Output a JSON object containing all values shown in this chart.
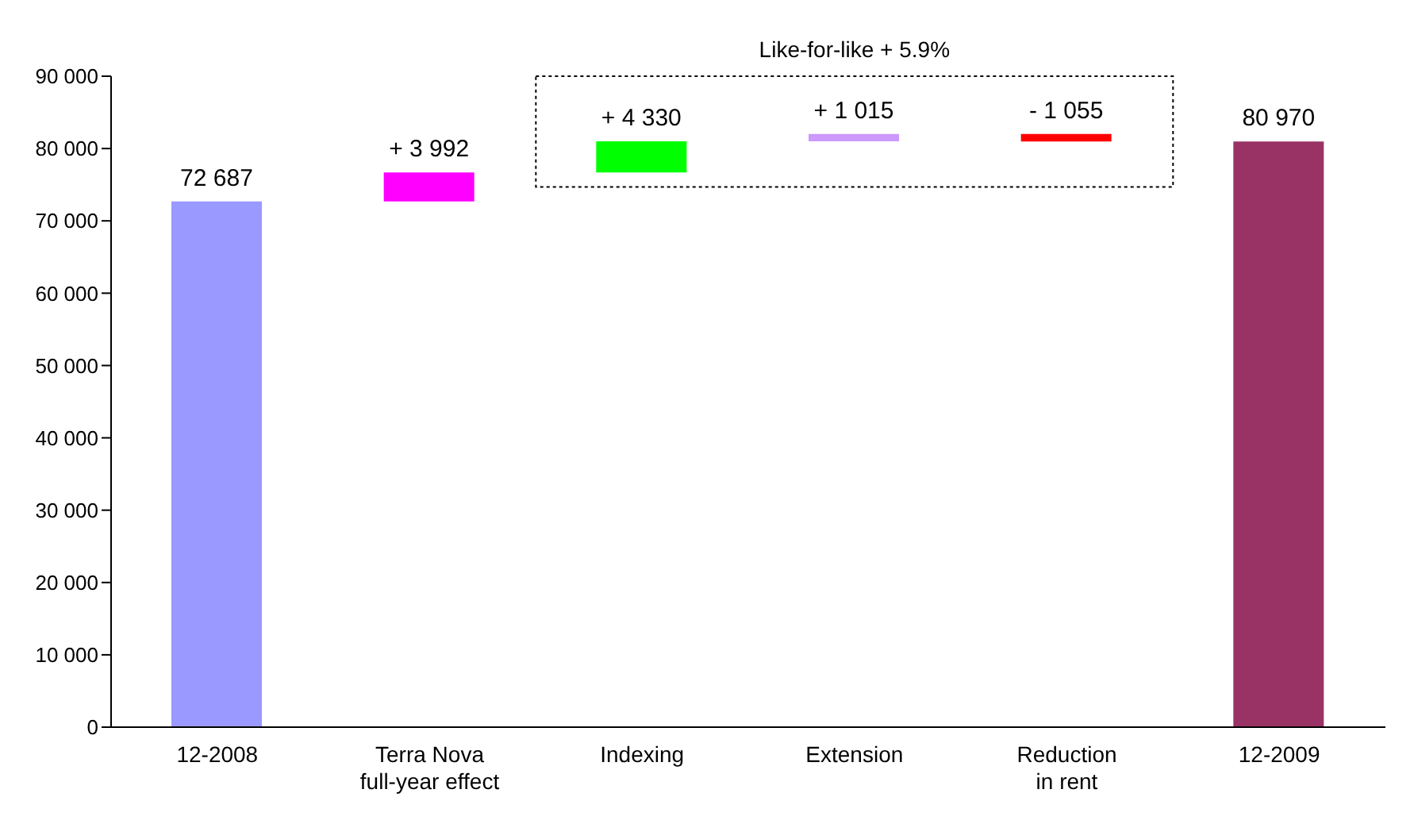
{
  "chart_data": {
    "type": "bar",
    "categories": [
      "12-2008",
      "Terra Nova full-year effect",
      "Indexing",
      "Extension",
      "Reduction in rent",
      "12-2009"
    ],
    "values": [
      72687,
      3992,
      4330,
      1015,
      -1055,
      80970
    ],
    "base": [
      0,
      72687,
      76679,
      81009,
      82024,
      0
    ],
    "colors": [
      "#9999ff",
      "#ff00ff",
      "#00ff00",
      "#cc99ff",
      "#ff0000",
      "#993366"
    ],
    "value_labels": [
      "72 687",
      "+ 3 992",
      "+ 4 330",
      "+ 1 015",
      "- 1 055",
      "80 970"
    ],
    "ylim": [
      0,
      90000
    ],
    "yticks": [
      {
        "value": 0,
        "label": "0"
      },
      {
        "value": 10000,
        "label": "10 000"
      },
      {
        "value": 20000,
        "label": "20 000"
      },
      {
        "value": 30000,
        "label": "30 000"
      },
      {
        "value": 40000,
        "label": "40 000"
      },
      {
        "value": 50000,
        "label": "50 000"
      },
      {
        "value": 60000,
        "label": "60 000"
      },
      {
        "value": 70000,
        "label": "70 000"
      },
      {
        "value": 80000,
        "label": "80 000"
      },
      {
        "value": 90000,
        "label": "90 000"
      }
    ],
    "annotations": [
      "Like-for-like + 5.9%"
    ],
    "grid": false,
    "legend": false
  }
}
